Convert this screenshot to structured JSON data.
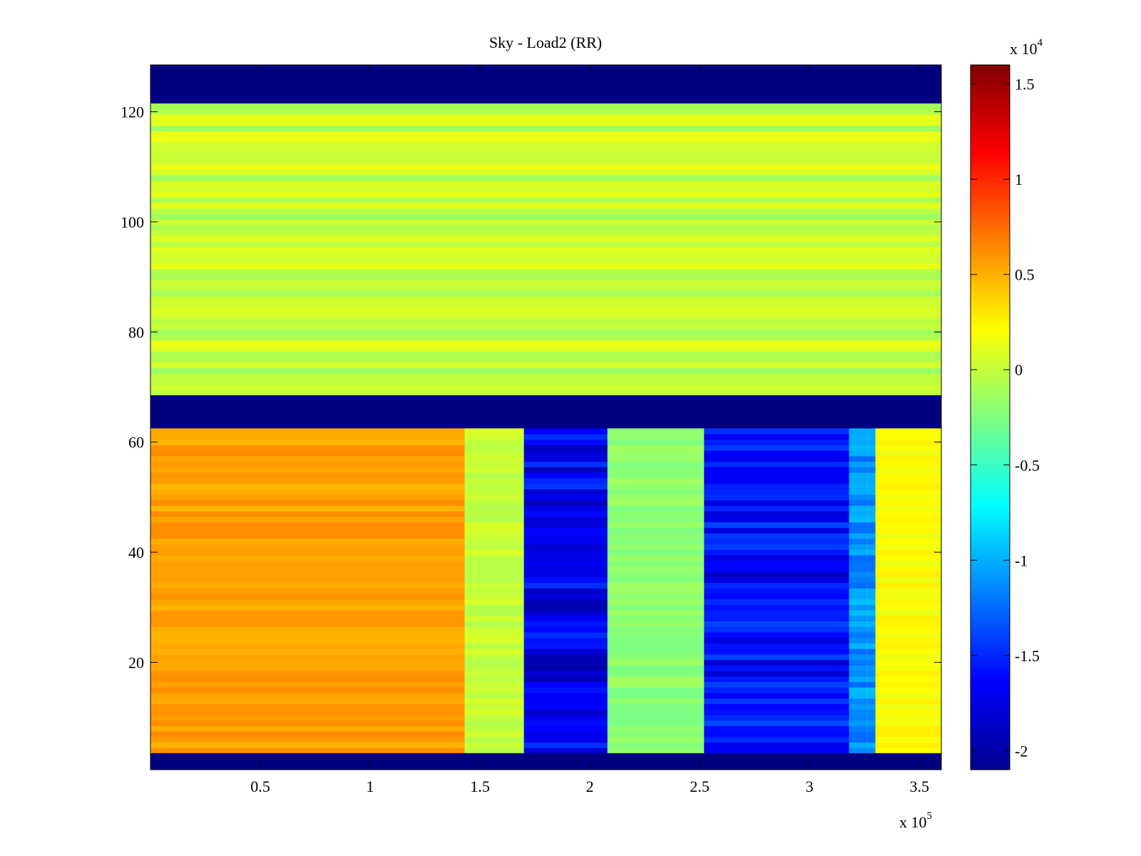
{
  "chart_data": {
    "type": "heatmap",
    "title": "Sky - Load2 (RR)",
    "xlabel": "",
    "ylabel": "",
    "x_range": [
      0,
      360000
    ],
    "y_range": [
      0.5,
      128.5
    ],
    "x_multiplier_label": "x 10",
    "x_multiplier_exp": "5",
    "x_ticks": [
      {
        "value": 50000,
        "label": "0.5"
      },
      {
        "value": 100000,
        "label": "1"
      },
      {
        "value": 150000,
        "label": "1.5"
      },
      {
        "value": 200000,
        "label": "2"
      },
      {
        "value": 250000,
        "label": "2.5"
      },
      {
        "value": 300000,
        "label": "3"
      },
      {
        "value": 350000,
        "label": "3.5"
      }
    ],
    "y_ticks": [
      {
        "value": 20,
        "label": "20"
      },
      {
        "value": 40,
        "label": "40"
      },
      {
        "value": 60,
        "label": "60"
      },
      {
        "value": 80,
        "label": "80"
      },
      {
        "value": 100,
        "label": "100"
      },
      {
        "value": 120,
        "label": "120"
      }
    ],
    "colorbar": {
      "colormap": "jet",
      "range": [
        -21000,
        16000
      ],
      "multiplier_label": "x 10",
      "multiplier_exp": "4",
      "ticks": [
        {
          "value": 15000,
          "label": "1.5"
        },
        {
          "value": 10000,
          "label": "1"
        },
        {
          "value": 5000,
          "label": "0.5"
        },
        {
          "value": 0,
          "label": "0"
        },
        {
          "value": -5000,
          "label": "-0.5"
        },
        {
          "value": -10000,
          "label": "-1"
        },
        {
          "value": -15000,
          "label": "-1.5"
        },
        {
          "value": -20000,
          "label": "-2"
        }
      ]
    },
    "masked_channel_ranges": [
      [
        0.5,
        3.5
      ],
      [
        62.5,
        68.5
      ],
      [
        121.5,
        128.5
      ]
    ],
    "masked_value": -21000,
    "upper_channels": {
      "channel_range": [
        68.5,
        121.5
      ],
      "approx_value": 0,
      "spread": [
        -2000,
        2500
      ]
    },
    "lower_channels": {
      "channel_range": [
        3.5,
        62.5
      ],
      "time_segments": [
        {
          "x": [
            0,
            143000
          ],
          "approx_value": 5500
        },
        {
          "x": [
            143000,
            170000
          ],
          "approx_value": 0
        },
        {
          "x": [
            170000,
            208000
          ],
          "approx_value": -17000
        },
        {
          "x": [
            208000,
            252000
          ],
          "approx_value": -2000
        },
        {
          "x": [
            252000,
            318000
          ],
          "approx_value": -16000
        },
        {
          "x": [
            318000,
            330000
          ],
          "approx_value": -11000
        },
        {
          "x": [
            330000,
            360000
          ],
          "approx_value": 2000
        }
      ]
    }
  }
}
